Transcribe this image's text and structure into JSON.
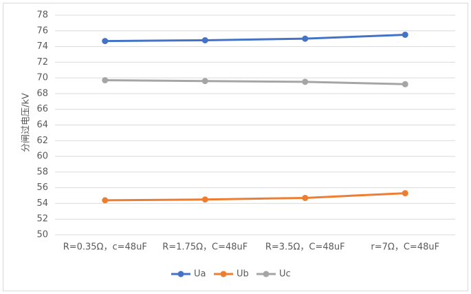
{
  "chart_data": {
    "type": "line",
    "y_label": "分闸过电压/kV",
    "categories": [
      "R=0.35Ω，c=48uF",
      "R=1.75Ω，C=48uF",
      "R=3.5Ω，C=48uF",
      "r=7Ω，C=48uF"
    ],
    "series": [
      {
        "name": "Ua",
        "color": "#4472c4",
        "values": [
          74.7,
          74.8,
          75.0,
          75.5
        ]
      },
      {
        "name": "Ub",
        "color": "#ed7d31",
        "values": [
          54.4,
          54.5,
          54.7,
          55.3
        ]
      },
      {
        "name": "Uc",
        "color": "#a5a5a5",
        "values": [
          69.7,
          69.6,
          69.5,
          69.2
        ]
      }
    ],
    "ylim": [
      50,
      78
    ],
    "yticks": [
      50,
      52,
      54,
      56,
      58,
      60,
      62,
      64,
      66,
      68,
      70,
      72,
      74,
      76,
      78
    ],
    "grid": true,
    "legend": "bottom"
  }
}
